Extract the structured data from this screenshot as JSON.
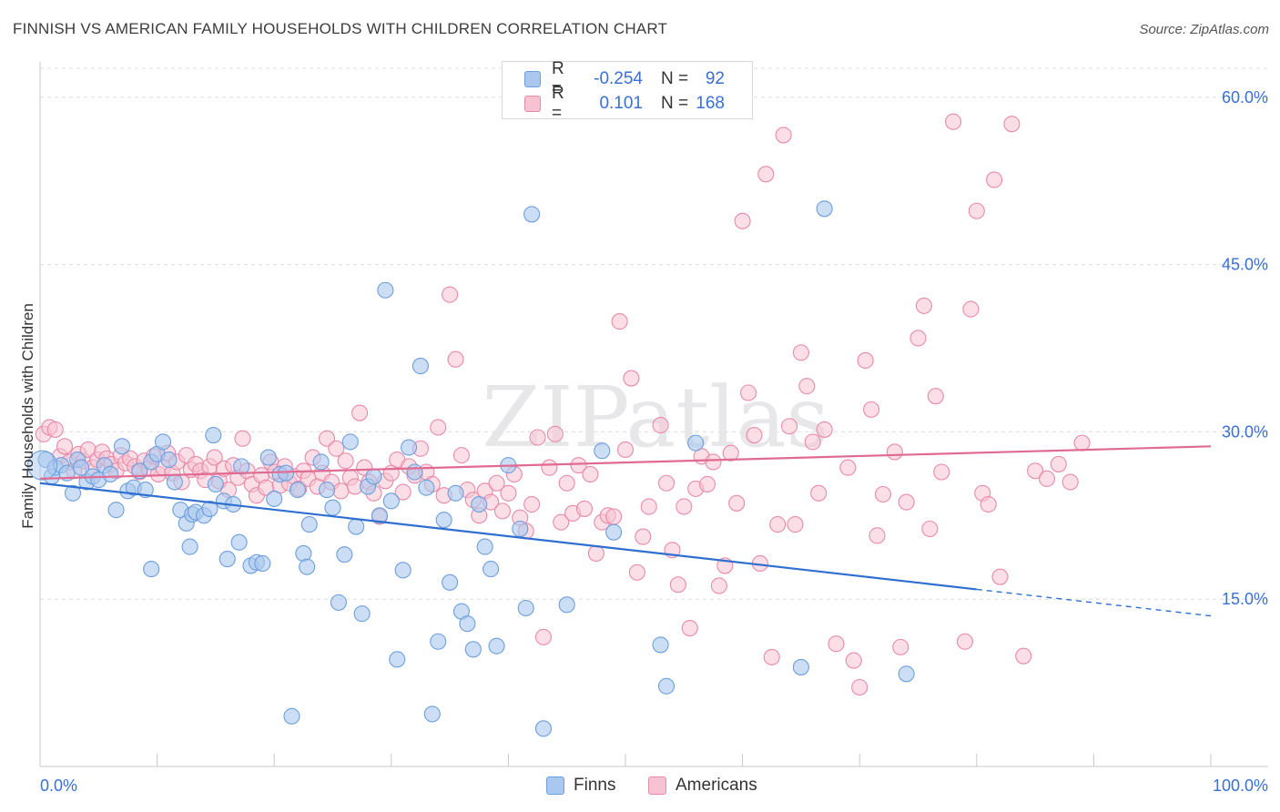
{
  "title": "FINNISH VS AMERICAN FAMILY HOUSEHOLDS WITH CHILDREN CORRELATION CHART",
  "source": "Source: ZipAtlas.com",
  "watermark": "ZIPatlas",
  "legend": {
    "finns": {
      "r_label": "R =",
      "r_value": "-0.254",
      "n_label": "N =",
      "n_value": "92"
    },
    "americans": {
      "r_label": "R =",
      "r_value": "0.101",
      "n_label": "N =",
      "n_value": "168"
    }
  },
  "bottom_legend": {
    "finns": "Finns",
    "americans": "Americans"
  },
  "colors": {
    "finns_fill": "#aac8ef",
    "finns_stroke": "#6d9fdd",
    "finns_line": "#2f6fd0",
    "americans_fill": "#f7c3d2",
    "americans_stroke": "#e88aaa",
    "americans_line": "#e06b92",
    "axis_label": "#3a6fd8",
    "grid": "#dddddd"
  },
  "chart_data": {
    "type": "scatter",
    "title": "FINNISH VS AMERICAN FAMILY HOUSEHOLDS WITH CHILDREN CORRELATION CHART",
    "xlabel": "",
    "ylabel": "Family Households with Children",
    "xlim": [
      0,
      100
    ],
    "ylim": [
      0,
      63
    ],
    "x_tick_labels": [
      "0.0%",
      "100.0%"
    ],
    "y_ticks": [
      15,
      30,
      45,
      60
    ],
    "y_tick_labels": [
      "15.0%",
      "30.0%",
      "45.0%",
      "60.0%"
    ],
    "grid": true,
    "series": [
      {
        "name": "Finns",
        "trend": {
          "start": [
            0,
            25.4
          ],
          "end": [
            100,
            13.5
          ],
          "solid_until": 80
        },
        "points": [
          [
            0.5,
            27.5
          ],
          [
            1,
            26
          ],
          [
            1.3,
            26.8
          ],
          [
            1.8,
            27
          ],
          [
            2.3,
            26.3
          ],
          [
            2.8,
            24.5
          ],
          [
            3.2,
            27.5
          ],
          [
            3.5,
            26.8
          ],
          [
            4,
            25.5
          ],
          [
            4.5,
            26
          ],
          [
            5,
            25.7
          ],
          [
            5.5,
            27
          ],
          [
            6,
            26.2
          ],
          [
            6.5,
            23
          ],
          [
            7,
            28.7
          ],
          [
            7.5,
            24.7
          ],
          [
            8,
            25
          ],
          [
            8.5,
            26.5
          ],
          [
            9,
            24.8
          ],
          [
            9.5,
            27.3
          ],
          [
            9.5,
            17.7
          ],
          [
            10,
            28
          ],
          [
            10.5,
            29.1
          ],
          [
            11,
            27.5
          ],
          [
            11.5,
            25.5
          ],
          [
            12,
            23
          ],
          [
            12.5,
            21.8
          ],
          [
            12.8,
            19.7
          ],
          [
            13,
            22.6
          ],
          [
            13.3,
            22.8
          ],
          [
            14,
            22.5
          ],
          [
            14.5,
            23.1
          ],
          [
            14.8,
            29.7
          ],
          [
            15,
            25.3
          ],
          [
            15.7,
            23.8
          ],
          [
            16,
            18.6
          ],
          [
            16.5,
            23.5
          ],
          [
            17,
            20.1
          ],
          [
            17.2,
            26.9
          ],
          [
            18,
            18
          ],
          [
            18.5,
            18.3
          ],
          [
            19,
            18.2
          ],
          [
            19.5,
            27.7
          ],
          [
            20,
            24
          ],
          [
            20.5,
            26.2
          ],
          [
            21,
            26.3
          ],
          [
            21.5,
            4.5
          ],
          [
            22,
            24.8
          ],
          [
            22.5,
            19.1
          ],
          [
            22.8,
            17.9
          ],
          [
            23,
            21.7
          ],
          [
            24,
            27.3
          ],
          [
            24.5,
            24.8
          ],
          [
            25,
            23.2
          ],
          [
            25.5,
            14.7
          ],
          [
            26,
            19
          ],
          [
            26.5,
            29.1
          ],
          [
            27,
            21.5
          ],
          [
            27.5,
            13.7
          ],
          [
            28,
            25.1
          ],
          [
            28.5,
            26
          ],
          [
            29,
            22.5
          ],
          [
            29.5,
            42.7
          ],
          [
            30,
            23.8
          ],
          [
            30.5,
            9.6
          ],
          [
            31,
            17.6
          ],
          [
            31.5,
            28.6
          ],
          [
            32,
            26.4
          ],
          [
            32.5,
            35.9
          ],
          [
            33,
            25
          ],
          [
            33.5,
            4.7
          ],
          [
            34,
            11.2
          ],
          [
            34.5,
            22.1
          ],
          [
            35,
            16.5
          ],
          [
            35.5,
            24.5
          ],
          [
            36,
            13.9
          ],
          [
            36.5,
            12.8
          ],
          [
            37,
            10.5
          ],
          [
            37.5,
            23.5
          ],
          [
            38,
            19.7
          ],
          [
            38.5,
            17.7
          ],
          [
            39,
            10.8
          ],
          [
            40,
            27
          ],
          [
            41,
            21.3
          ],
          [
            41.5,
            14.2
          ],
          [
            42,
            49.5
          ],
          [
            43,
            3.4
          ],
          [
            45,
            14.5
          ],
          [
            48,
            28.3
          ],
          [
            49,
            21
          ],
          [
            53,
            10.9
          ],
          [
            53.5,
            7.2
          ],
          [
            56,
            29
          ],
          [
            65,
            8.9
          ],
          [
            67,
            50
          ],
          [
            74,
            8.3
          ]
        ]
      },
      {
        "name": "Americans",
        "trend": {
          "start": [
            0,
            25.8
          ],
          "end": [
            100,
            28.7
          ]
        },
        "points": [
          [
            0.3,
            29.8
          ],
          [
            0.8,
            30.4
          ],
          [
            1.3,
            30.2
          ],
          [
            1.7,
            27.8
          ],
          [
            2.1,
            28.7
          ],
          [
            2.5,
            27.3
          ],
          [
            2.9,
            26.5
          ],
          [
            3.3,
            28
          ],
          [
            3.7,
            27.4
          ],
          [
            4.1,
            28.4
          ],
          [
            4.5,
            26.8
          ],
          [
            4.9,
            27.5
          ],
          [
            5.3,
            28.2
          ],
          [
            5.7,
            27.6
          ],
          [
            6.1,
            27.1
          ],
          [
            6.5,
            26.5
          ],
          [
            6.9,
            27.9
          ],
          [
            7.3,
            27.2
          ],
          [
            7.7,
            27.6
          ],
          [
            8.1,
            26.9
          ],
          [
            8.5,
            26.4
          ],
          [
            8.9,
            27.4
          ],
          [
            9.3,
            26.7
          ],
          [
            9.7,
            27.8
          ],
          [
            10.1,
            26.2
          ],
          [
            10.5,
            26.8
          ],
          [
            10.9,
            28.1
          ],
          [
            11.3,
            26.3
          ],
          [
            11.7,
            27.3
          ],
          [
            12.1,
            25.5
          ],
          [
            12.5,
            27.9
          ],
          [
            12.9,
            26.6
          ],
          [
            13.3,
            27.1
          ],
          [
            13.7,
            26.5
          ],
          [
            14.1,
            25.7
          ],
          [
            14.5,
            26.9
          ],
          [
            14.9,
            27.7
          ],
          [
            15.3,
            25.6
          ],
          [
            15.7,
            26.7
          ],
          [
            16.1,
            24.8
          ],
          [
            16.5,
            27
          ],
          [
            16.9,
            25.9
          ],
          [
            17.3,
            29.4
          ],
          [
            17.7,
            26.5
          ],
          [
            18.1,
            25.3
          ],
          [
            18.5,
            24.3
          ],
          [
            18.9,
            26.1
          ],
          [
            19.3,
            25
          ],
          [
            19.7,
            27.3
          ],
          [
            20.1,
            26.4
          ],
          [
            20.5,
            25.2
          ],
          [
            20.9,
            26.9
          ],
          [
            21.3,
            25.4
          ],
          [
            21.7,
            26
          ],
          [
            22.1,
            24.9
          ],
          [
            22.5,
            26.5
          ],
          [
            22.9,
            25.8
          ],
          [
            23.3,
            27.7
          ],
          [
            23.7,
            25.1
          ],
          [
            24.1,
            26.3
          ],
          [
            24.5,
            29.4
          ],
          [
            24.9,
            25.5
          ],
          [
            25.3,
            28.5
          ],
          [
            25.7,
            24.7
          ],
          [
            26.1,
            27.4
          ],
          [
            26.5,
            25.9
          ],
          [
            26.9,
            25.1
          ],
          [
            27.3,
            31.7
          ],
          [
            27.7,
            26.8
          ],
          [
            28.1,
            25.5
          ],
          [
            28.5,
            24.5
          ],
          [
            29,
            22.4
          ],
          [
            29.5,
            25.6
          ],
          [
            30,
            26.3
          ],
          [
            30.5,
            27.5
          ],
          [
            31,
            24.6
          ],
          [
            31.5,
            26.9
          ],
          [
            32,
            26.1
          ],
          [
            32.5,
            28.5
          ],
          [
            33,
            26.4
          ],
          [
            33.5,
            25.3
          ],
          [
            34,
            30.4
          ],
          [
            34.5,
            24.3
          ],
          [
            35,
            42.3
          ],
          [
            35.5,
            36.5
          ],
          [
            36,
            27.9
          ],
          [
            36.5,
            24.8
          ],
          [
            37,
            23.9
          ],
          [
            37.5,
            22.5
          ],
          [
            38,
            24.7
          ],
          [
            38.5,
            23.7
          ],
          [
            39,
            25.4
          ],
          [
            39.5,
            22.9
          ],
          [
            40,
            24.5
          ],
          [
            40.5,
            26.2
          ],
          [
            41,
            22.3
          ],
          [
            41.5,
            21.1
          ],
          [
            42,
            23.5
          ],
          [
            42.5,
            29.5
          ],
          [
            43,
            11.6
          ],
          [
            43.5,
            26.8
          ],
          [
            44,
            29.8
          ],
          [
            44.5,
            21.9
          ],
          [
            45,
            25.4
          ],
          [
            45.5,
            22.7
          ],
          [
            46,
            27
          ],
          [
            46.5,
            23.1
          ],
          [
            47,
            26.2
          ],
          [
            47.5,
            19.1
          ],
          [
            48,
            21.9
          ],
          [
            48.5,
            22.5
          ],
          [
            49,
            22.4
          ],
          [
            49.5,
            39.9
          ],
          [
            50,
            28.4
          ],
          [
            50.5,
            34.8
          ],
          [
            51,
            17.4
          ],
          [
            51.5,
            20.6
          ],
          [
            52,
            23.3
          ],
          [
            53,
            30.6
          ],
          [
            53.5,
            25.4
          ],
          [
            54,
            19.4
          ],
          [
            54.5,
            16.3
          ],
          [
            55,
            23.3
          ],
          [
            55.5,
            12.4
          ],
          [
            56,
            24.9
          ],
          [
            56.5,
            27.8
          ],
          [
            57,
            25.3
          ],
          [
            57.5,
            27.3
          ],
          [
            58,
            16.2
          ],
          [
            58.5,
            18
          ],
          [
            59,
            28.1
          ],
          [
            59.5,
            23.6
          ],
          [
            60,
            48.9
          ],
          [
            60.5,
            33.5
          ],
          [
            61,
            29.7
          ],
          [
            61.5,
            18.2
          ],
          [
            62,
            53.1
          ],
          [
            62.5,
            9.8
          ],
          [
            63,
            21.7
          ],
          [
            63.5,
            56.6
          ],
          [
            64,
            30.5
          ],
          [
            64.5,
            21.7
          ],
          [
            65,
            37.1
          ],
          [
            65.5,
            34.1
          ],
          [
            66,
            29.1
          ],
          [
            66.5,
            24.5
          ],
          [
            67,
            30.2
          ],
          [
            68,
            11
          ],
          [
            69,
            26.8
          ],
          [
            69.5,
            9.5
          ],
          [
            70,
            7.1
          ],
          [
            70.5,
            36.4
          ],
          [
            71,
            32
          ],
          [
            71.5,
            20.7
          ],
          [
            72,
            24.4
          ],
          [
            73,
            28.2
          ],
          [
            73.5,
            10.7
          ],
          [
            74,
            23.7
          ],
          [
            75,
            38.4
          ],
          [
            75.5,
            41.3
          ],
          [
            76,
            21.3
          ],
          [
            76.5,
            33.2
          ],
          [
            77,
            26.4
          ],
          [
            78,
            57.8
          ],
          [
            79,
            11.2
          ],
          [
            79.5,
            41
          ],
          [
            80,
            49.8
          ],
          [
            80.5,
            24.5
          ],
          [
            81,
            23.5
          ],
          [
            81.5,
            52.6
          ],
          [
            82,
            17
          ],
          [
            83,
            57.6
          ],
          [
            84,
            9.9
          ],
          [
            85,
            26.5
          ],
          [
            86,
            25.8
          ],
          [
            87,
            27.1
          ],
          [
            88,
            25.5
          ],
          [
            89,
            29
          ]
        ]
      }
    ]
  }
}
